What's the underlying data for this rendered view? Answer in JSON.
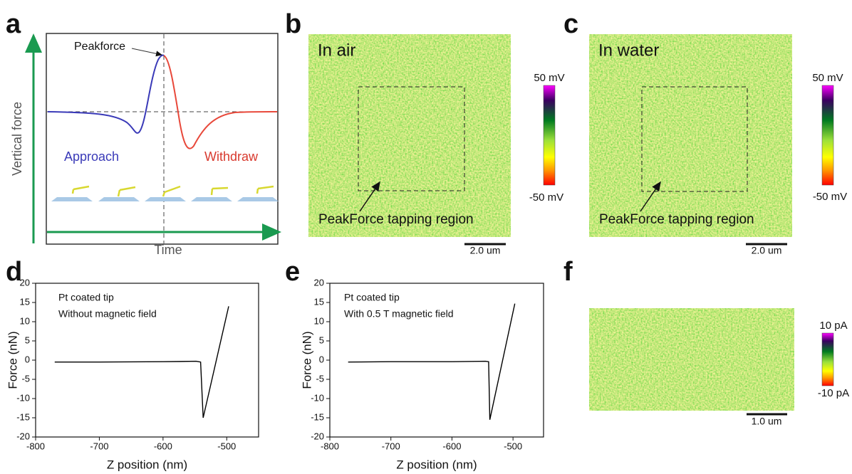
{
  "panel_labels": [
    "a",
    "b",
    "c",
    "d",
    "e",
    "f"
  ],
  "diagram": {
    "peakforce": "Peakforce",
    "y_label": "Vertical force",
    "x_label": "Time",
    "approach": "Approach",
    "withdraw": "Withdraw"
  },
  "images": [
    {
      "title": "In air",
      "annotation": "PeakForce tapping region",
      "colorbar_max": "50 mV",
      "colorbar_min": "-50 mV",
      "scale_bar": "2.0 um"
    },
    {
      "title": "In water",
      "annotation": "PeakForce tapping region",
      "colorbar_max": "50 mV",
      "colorbar_min": "-50 mV",
      "scale_bar": "2.0 um"
    },
    {
      "colorbar_max": "10 pA",
      "colorbar_min": "-10 pA",
      "scale_bar": "1.0 um"
    }
  ],
  "chart_data": [
    {
      "type": "line",
      "notes": [
        "Pt coated tip",
        "Without magnetic field"
      ],
      "x_label": "Z position (nm)",
      "y_label": "Force (nN)",
      "x": [
        -770,
        -700,
        -600,
        -548,
        -541,
        -537,
        -497
      ],
      "values": [
        -0.5,
        -0.5,
        -0.4,
        -0.3,
        -0.5,
        -15,
        14
      ],
      "color": "#000000",
      "xlim": [
        -800,
        -450
      ],
      "ylim": [
        -20,
        20
      ],
      "xticks": [
        -800,
        -700,
        -600,
        -500
      ],
      "yticks": [
        -20,
        -15,
        -10,
        -5,
        0,
        5,
        10,
        15,
        20
      ]
    },
    {
      "type": "line",
      "notes": [
        "Pt coated tip",
        "With 0.5 T magnetic field"
      ],
      "x_label": "Z position (nm)",
      "y_label": "Force (nN)",
      "x": [
        -770,
        -700,
        -600,
        -545,
        -540,
        -538,
        -497
      ],
      "values": [
        -0.5,
        -0.4,
        -0.4,
        -0.3,
        -0.4,
        -15.5,
        14.7
      ],
      "color": "#000000",
      "xlim": [
        -800,
        -450
      ],
      "ylim": [
        -20,
        20
      ],
      "xticks": [
        -800,
        -700,
        -600,
        -500
      ],
      "yticks": [
        -20,
        -15,
        -10,
        -5,
        0,
        5,
        10,
        15,
        20
      ]
    }
  ]
}
